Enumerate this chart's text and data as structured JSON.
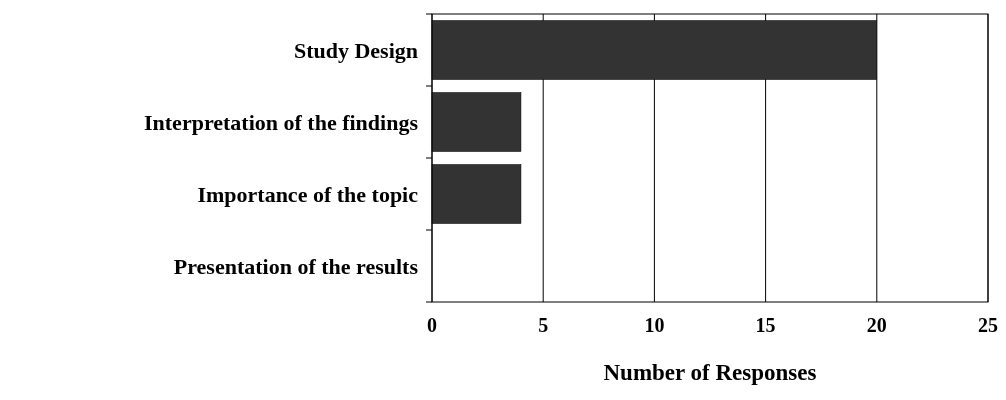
{
  "chart_data": {
    "type": "bar",
    "orientation": "horizontal",
    "xlabel": "Number of Responses",
    "categories": [
      "Study Design",
      "Interpretation of the findings",
      "Importance of the topic",
      "Presentation of the results"
    ],
    "values": [
      20,
      4,
      4,
      0
    ],
    "color": "#333333",
    "xlim": [
      0,
      25
    ],
    "xticks": [
      0,
      5,
      10,
      15,
      20,
      25
    ],
    "grid": "x"
  }
}
